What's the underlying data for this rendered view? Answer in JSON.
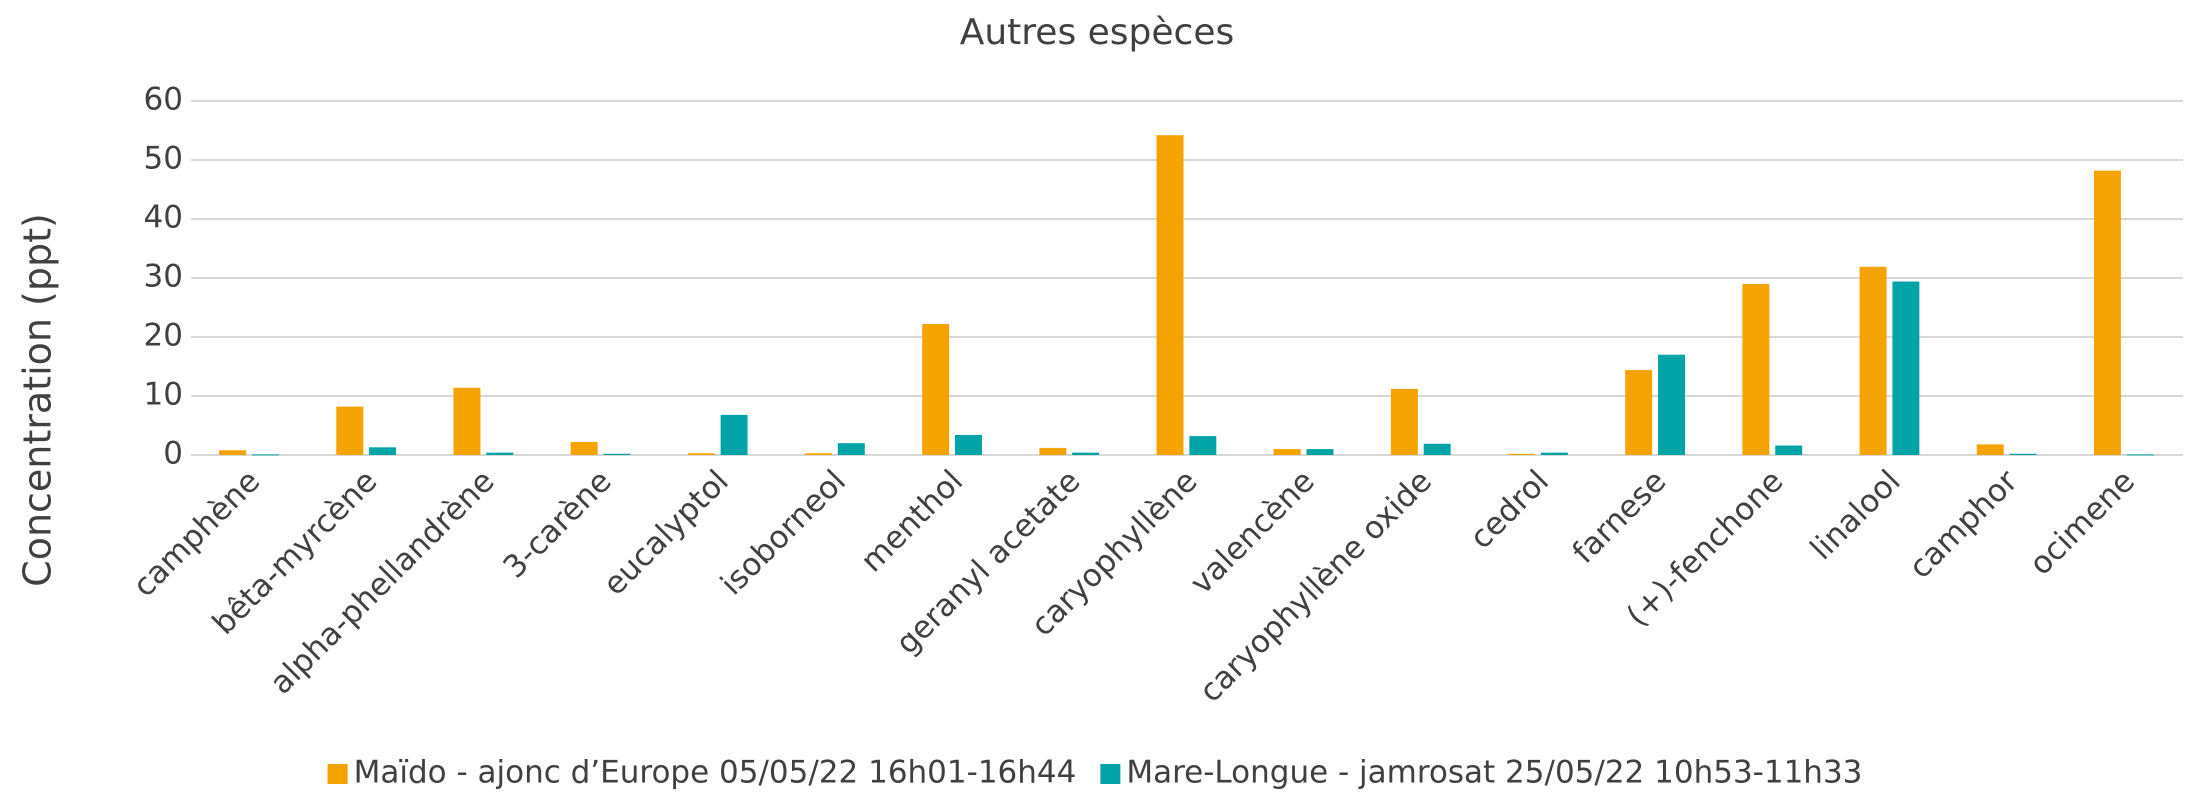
{
  "chart_data": {
    "type": "bar",
    "title": "Autres espèces",
    "y_label": "Concentration (ppt)",
    "categories": [
      "camphène",
      "bêta-myrcène",
      "alpha-phellandrène",
      "3-carène",
      "eucalyptol",
      "isoborneol",
      "menthol",
      "geranyl acetate",
      "caryophyllène",
      "valencène",
      "caryophyllène oxide",
      "cedrol",
      "farnese",
      "(+)-fenchone",
      "linalool",
      "camphor",
      "ocimene"
    ],
    "series": [
      {
        "name": "Maïdo - ajonc d’Europe 05/05/22 16h01-16h44",
        "color": "#f5a300",
        "values": [
          0.8,
          8.2,
          11.4,
          2.2,
          0.3,
          0.3,
          22.2,
          1.2,
          54.2,
          1.0,
          11.2,
          0.2,
          14.4,
          29.0,
          31.9,
          1.8,
          48.2
        ]
      },
      {
        "name": "Mare-Longue - jamrosat 25/05/22 10h53-11h33",
        "color": "#00a3a6",
        "values": [
          0.1,
          1.3,
          0.4,
          0.2,
          6.8,
          2.0,
          3.4,
          0.4,
          3.2,
          1.0,
          1.9,
          0.4,
          17.0,
          1.6,
          29.4,
          0.2,
          0.1
        ]
      }
    ],
    "ylim": [
      0,
      60
    ],
    "yticks": [
      0,
      10,
      20,
      30,
      40,
      50,
      60
    ],
    "grid": true,
    "legend": "bottom"
  }
}
